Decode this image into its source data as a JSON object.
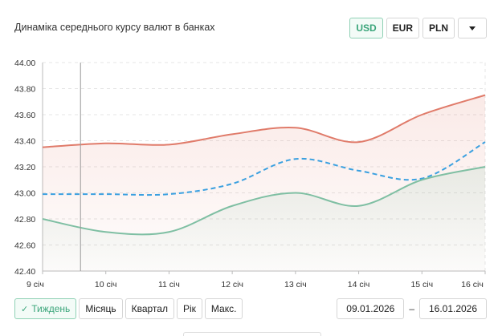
{
  "title": "Динаміка середнього курсу валют в банках",
  "currencies": [
    {
      "label": "USD",
      "active": true
    },
    {
      "label": "EUR",
      "active": false
    },
    {
      "label": "PLN",
      "active": false
    }
  ],
  "periods": [
    {
      "label": "Тиждень",
      "active": true
    },
    {
      "label": "Місяць",
      "active": false
    },
    {
      "label": "Квартал",
      "active": false
    },
    {
      "label": "Рік",
      "active": false
    },
    {
      "label": "Макс.",
      "active": false
    }
  ],
  "date_from": "09.01.2026",
  "date_sep": "–",
  "date_to": "16.01.2026",
  "colors": {
    "sell": "#e07b6a",
    "buy": "#7fbfa3",
    "mid": "#3aa0e0",
    "active": "#3aa57a"
  },
  "chart_data": {
    "type": "line",
    "x": [
      "9 січ",
      "10 січ",
      "11 січ",
      "12 січ",
      "13 січ",
      "14 січ",
      "15 січ",
      "16 січ"
    ],
    "ylim": [
      42.4,
      44.0
    ],
    "yticks": [
      "44.00",
      "43.80",
      "43.60",
      "43.40",
      "43.20",
      "43.00",
      "42.80",
      "42.60",
      "42.40"
    ],
    "grid": true,
    "series": [
      {
        "key": "sell",
        "style": "solid",
        "values": [
          43.35,
          43.38,
          43.37,
          43.45,
          43.5,
          43.39,
          43.6,
          43.75
        ]
      },
      {
        "key": "mid",
        "style": "dashed",
        "values": [
          42.99,
          42.99,
          42.99,
          43.07,
          43.26,
          43.17,
          43.11,
          43.39
        ]
      },
      {
        "key": "buy",
        "style": "solid",
        "values": [
          42.8,
          42.7,
          42.7,
          42.9,
          43.0,
          42.9,
          43.1,
          43.2
        ]
      }
    ],
    "crosshair_x": 9.6
  }
}
